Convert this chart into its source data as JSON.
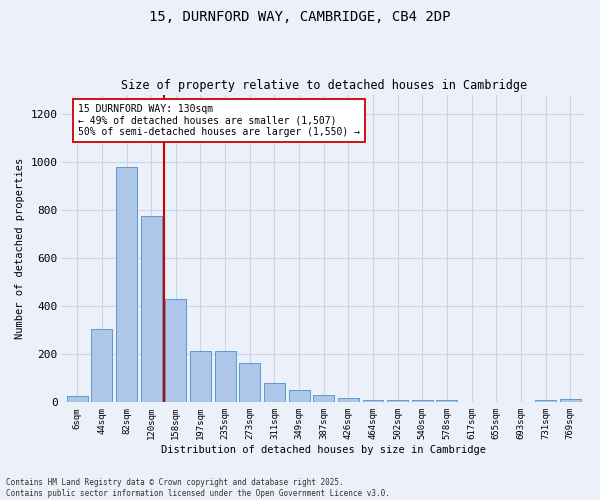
{
  "title_line1": "15, DURNFORD WAY, CAMBRIDGE, CB4 2DP",
  "title_line2": "Size of property relative to detached houses in Cambridge",
  "xlabel": "Distribution of detached houses by size in Cambridge",
  "ylabel": "Number of detached properties",
  "categories": [
    "6sqm",
    "44sqm",
    "82sqm",
    "120sqm",
    "158sqm",
    "197sqm",
    "235sqm",
    "273sqm",
    "311sqm",
    "349sqm",
    "387sqm",
    "426sqm",
    "464sqm",
    "502sqm",
    "540sqm",
    "578sqm",
    "617sqm",
    "655sqm",
    "693sqm",
    "731sqm",
    "769sqm"
  ],
  "values": [
    25,
    305,
    980,
    775,
    430,
    215,
    215,
    165,
    80,
    50,
    30,
    18,
    8,
    8,
    8,
    8,
    0,
    0,
    0,
    8,
    12
  ],
  "bar_color": "#aec6e8",
  "bar_edge_color": "#5b9bd5",
  "grid_color": "#c8d4e8",
  "vline_x_index": 3,
  "vline_color": "#cc0000",
  "annotation_text": "15 DURNFORD WAY: 130sqm\n← 49% of detached houses are smaller (1,507)\n50% of semi-detached houses are larger (1,550) →",
  "annotation_box_color": "#ffffff",
  "annotation_box_edge_color": "#cc0000",
  "ylim": [
    0,
    1280
  ],
  "yticks": [
    0,
    200,
    400,
    600,
    800,
    1000,
    1200
  ],
  "footnote": "Contains HM Land Registry data © Crown copyright and database right 2025.\nContains public sector information licensed under the Open Government Licence v3.0.",
  "background_color": "#ecf0f8",
  "plot_bg_color": "#ecf0f8",
  "title1_fontsize": 10,
  "title2_fontsize": 8.5
}
